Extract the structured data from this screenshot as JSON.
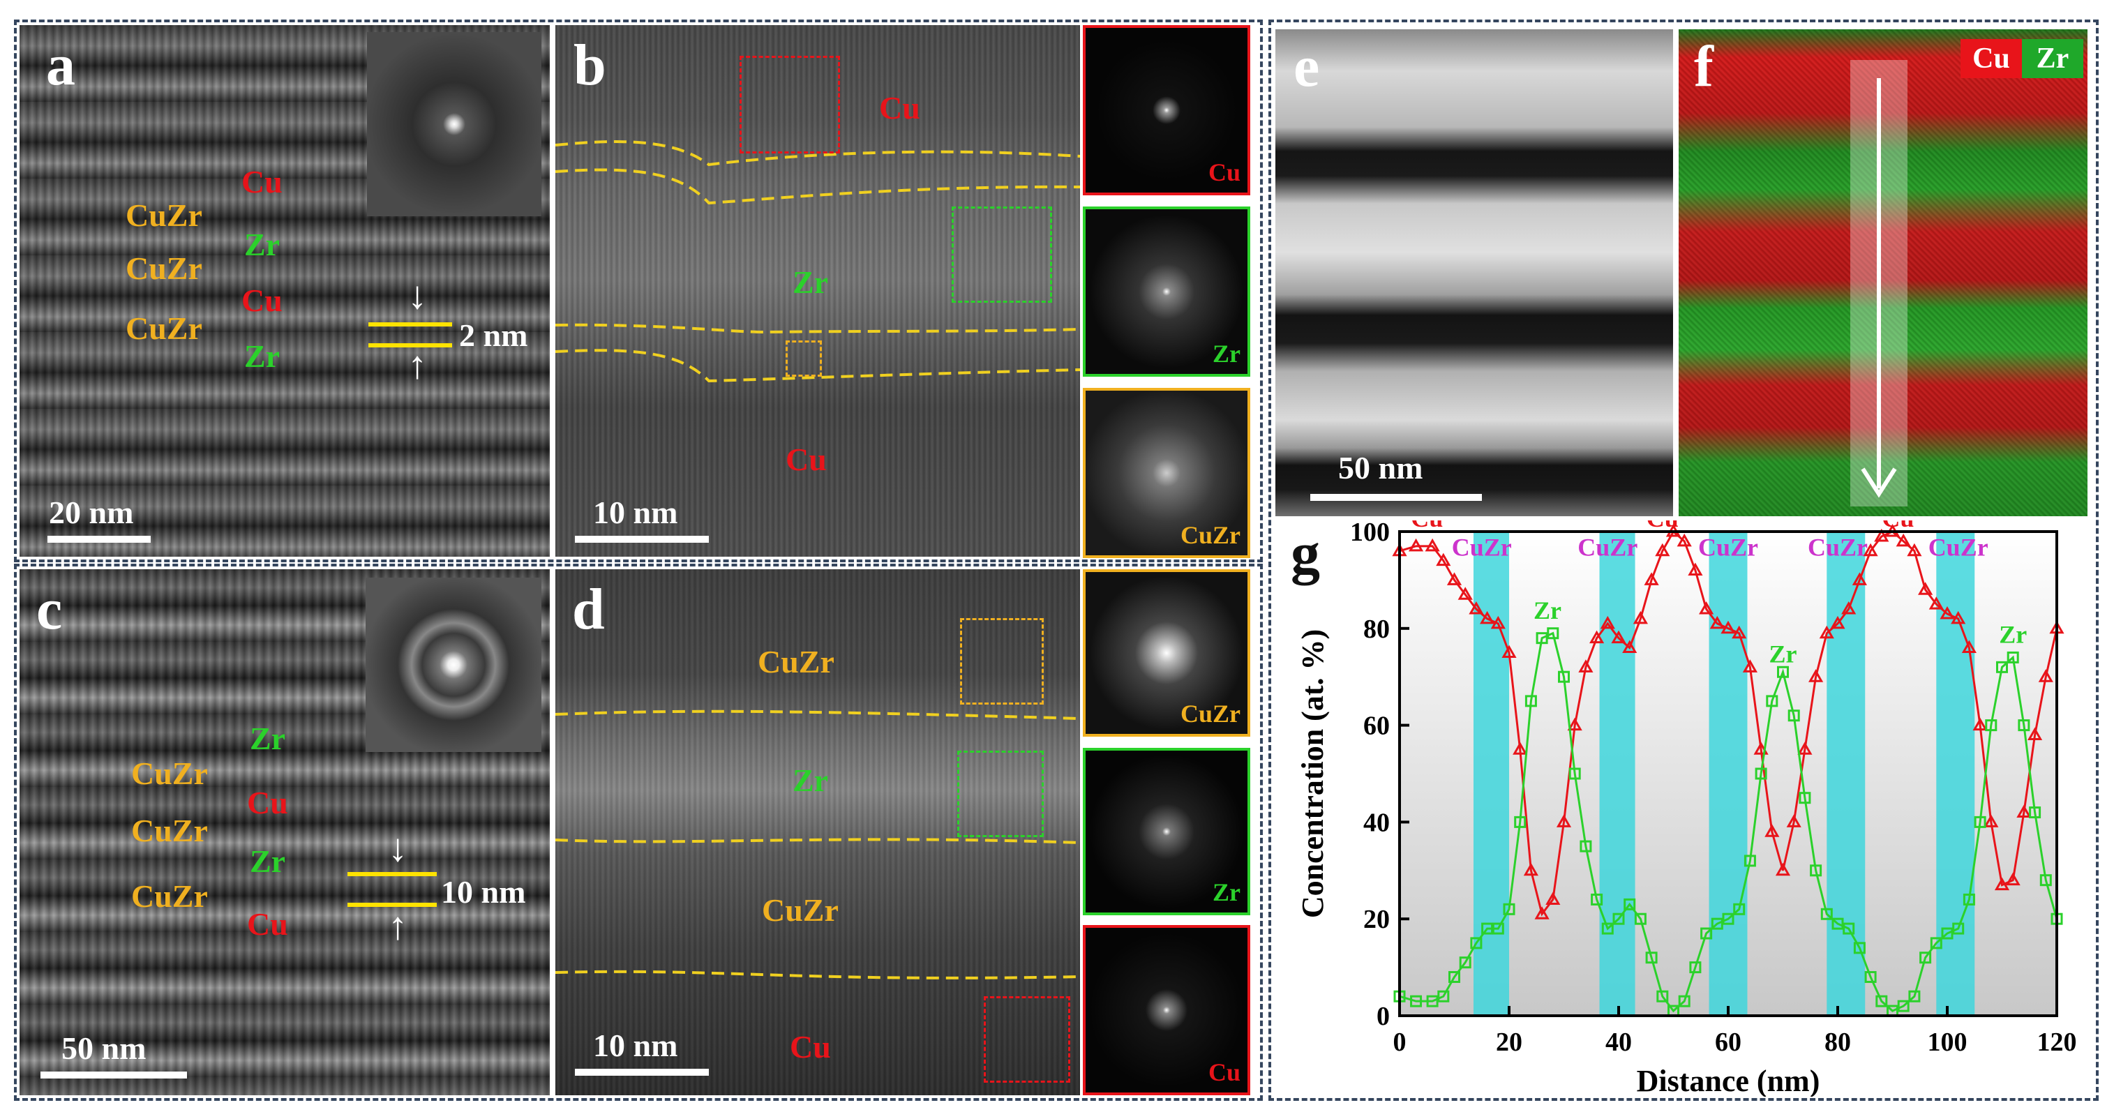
{
  "panels": {
    "a": {
      "letter": "a",
      "labels": {
        "cu1": "Cu",
        "zr1": "Zr",
        "cuzr1": "CuZr",
        "cuzr2": "CuZr",
        "cu2": "Cu",
        "cuzr3": "CuZr",
        "zr2": "Zr"
      },
      "thickness": "2 nm",
      "scale": "20 nm"
    },
    "b": {
      "letter": "b",
      "labels": {
        "cu_top": "Cu",
        "zr": "Zr",
        "cu_bottom": "Cu"
      },
      "scale": "10 nm",
      "fft": [
        "Cu",
        "Zr",
        "CuZr"
      ]
    },
    "c": {
      "letter": "c",
      "labels": {
        "zr1": "Zr",
        "cuzr1": "CuZr",
        "cu1": "Cu",
        "cuzr2": "CuZr",
        "zr2": "Zr",
        "cuzr3": "CuZr",
        "cu2": "Cu"
      },
      "thickness": "10 nm",
      "scale": "50 nm"
    },
    "d": {
      "letter": "d",
      "labels": {
        "cuzr_top": "CuZr",
        "zr": "Zr",
        "cuzr_mid": "CuZr",
        "cu": "Cu"
      },
      "scale": "10 nm",
      "fft": [
        "CuZr",
        "Zr",
        "Cu"
      ]
    },
    "e": {
      "letter": "e",
      "scale": "50 nm"
    },
    "f": {
      "letter": "f",
      "legend": [
        "Cu",
        "Zr"
      ]
    },
    "g": {
      "letter": "g"
    }
  },
  "colors": {
    "cu": "#e8141a",
    "zr": "#2bd12b",
    "cuzr": "#f0b020",
    "cuzr_interface": "#cc33cc",
    "band": "#3fd6dc"
  },
  "chart_data": {
    "type": "line",
    "xlabel": "Distance (nm)",
    "ylabel": "Concentration (at. %)",
    "xlim": [
      0,
      120
    ],
    "ylim": [
      0,
      100
    ],
    "xticks": [
      0,
      20,
      40,
      60,
      80,
      100,
      120
    ],
    "yticks": [
      0,
      20,
      40,
      60,
      80,
      100
    ],
    "interface_bands": [
      [
        13.5,
        20
      ],
      [
        36.5,
        43
      ],
      [
        56.5,
        63.5
      ],
      [
        78,
        85
      ],
      [
        98,
        105
      ]
    ],
    "series": [
      {
        "name": "Cu",
        "color": "#e8141a",
        "x": [
          0,
          3,
          6,
          8,
          10,
          12,
          14,
          16,
          18,
          20,
          22,
          24,
          26,
          28,
          30,
          32,
          34,
          36,
          38,
          40,
          42,
          44,
          46,
          48,
          50,
          52,
          54,
          56,
          58,
          60,
          62,
          64,
          66,
          68,
          70,
          72,
          74,
          76,
          78,
          80,
          82,
          84,
          86,
          88,
          90,
          92,
          94,
          96,
          98,
          100,
          102,
          104,
          106,
          108,
          110,
          112,
          114,
          116,
          118,
          120
        ],
        "y": [
          96,
          97,
          97,
          94,
          90,
          87,
          84,
          82,
          81,
          75,
          55,
          30,
          21,
          24,
          40,
          60,
          72,
          78,
          81,
          78,
          76,
          82,
          90,
          96,
          100,
          98,
          92,
          84,
          81,
          80,
          79,
          72,
          55,
          38,
          30,
          40,
          55,
          70,
          79,
          81,
          84,
          90,
          96,
          99,
          100,
          98,
          96,
          88,
          85,
          83,
          82,
          76,
          60,
          40,
          27,
          28,
          42,
          58,
          70,
          80
        ]
      },
      {
        "name": "Zr",
        "color": "#2bd12b",
        "x": [
          0,
          3,
          6,
          8,
          10,
          12,
          14,
          16,
          18,
          20,
          22,
          24,
          26,
          28,
          30,
          32,
          34,
          36,
          38,
          40,
          42,
          44,
          46,
          48,
          50,
          52,
          54,
          56,
          58,
          60,
          62,
          64,
          66,
          68,
          70,
          72,
          74,
          76,
          78,
          80,
          82,
          84,
          86,
          88,
          90,
          92,
          94,
          96,
          98,
          100,
          102,
          104,
          106,
          108,
          110,
          112,
          114,
          116,
          118,
          120
        ],
        "y": [
          4,
          3,
          3,
          4,
          8,
          11,
          15,
          18,
          18,
          22,
          40,
          65,
          78,
          79,
          70,
          50,
          35,
          24,
          18,
          20,
          23,
          20,
          12,
          4,
          1,
          3,
          10,
          17,
          19,
          20,
          22,
          32,
          50,
          65,
          71,
          62,
          45,
          30,
          21,
          19,
          18,
          14,
          8,
          3,
          1,
          2,
          4,
          12,
          15,
          17,
          18,
          24,
          40,
          60,
          72,
          74,
          60,
          42,
          28,
          20
        ]
      }
    ],
    "annotations": [
      {
        "text": "Cu",
        "x": 5,
        "y": 101,
        "color": "#e8141a"
      },
      {
        "text": "CuZr",
        "x": 15,
        "y": 95,
        "color": "#cc33cc"
      },
      {
        "text": "Zr",
        "x": 27,
        "y": 82,
        "color": "#2bd12b"
      },
      {
        "text": "CuZr",
        "x": 38,
        "y": 95,
        "color": "#cc33cc"
      },
      {
        "text": "Cu",
        "x": 48,
        "y": 101,
        "color": "#e8141a"
      },
      {
        "text": "CuZr",
        "x": 60,
        "y": 95,
        "color": "#cc33cc"
      },
      {
        "text": "Zr",
        "x": 70,
        "y": 73,
        "color": "#2bd12b"
      },
      {
        "text": "CuZr",
        "x": 80,
        "y": 95,
        "color": "#cc33cc"
      },
      {
        "text": "Cu",
        "x": 91,
        "y": 101,
        "color": "#e8141a"
      },
      {
        "text": "CuZr",
        "x": 102,
        "y": 95,
        "color": "#cc33cc"
      },
      {
        "text": "Zr",
        "x": 112,
        "y": 77,
        "color": "#2bd12b"
      }
    ]
  }
}
